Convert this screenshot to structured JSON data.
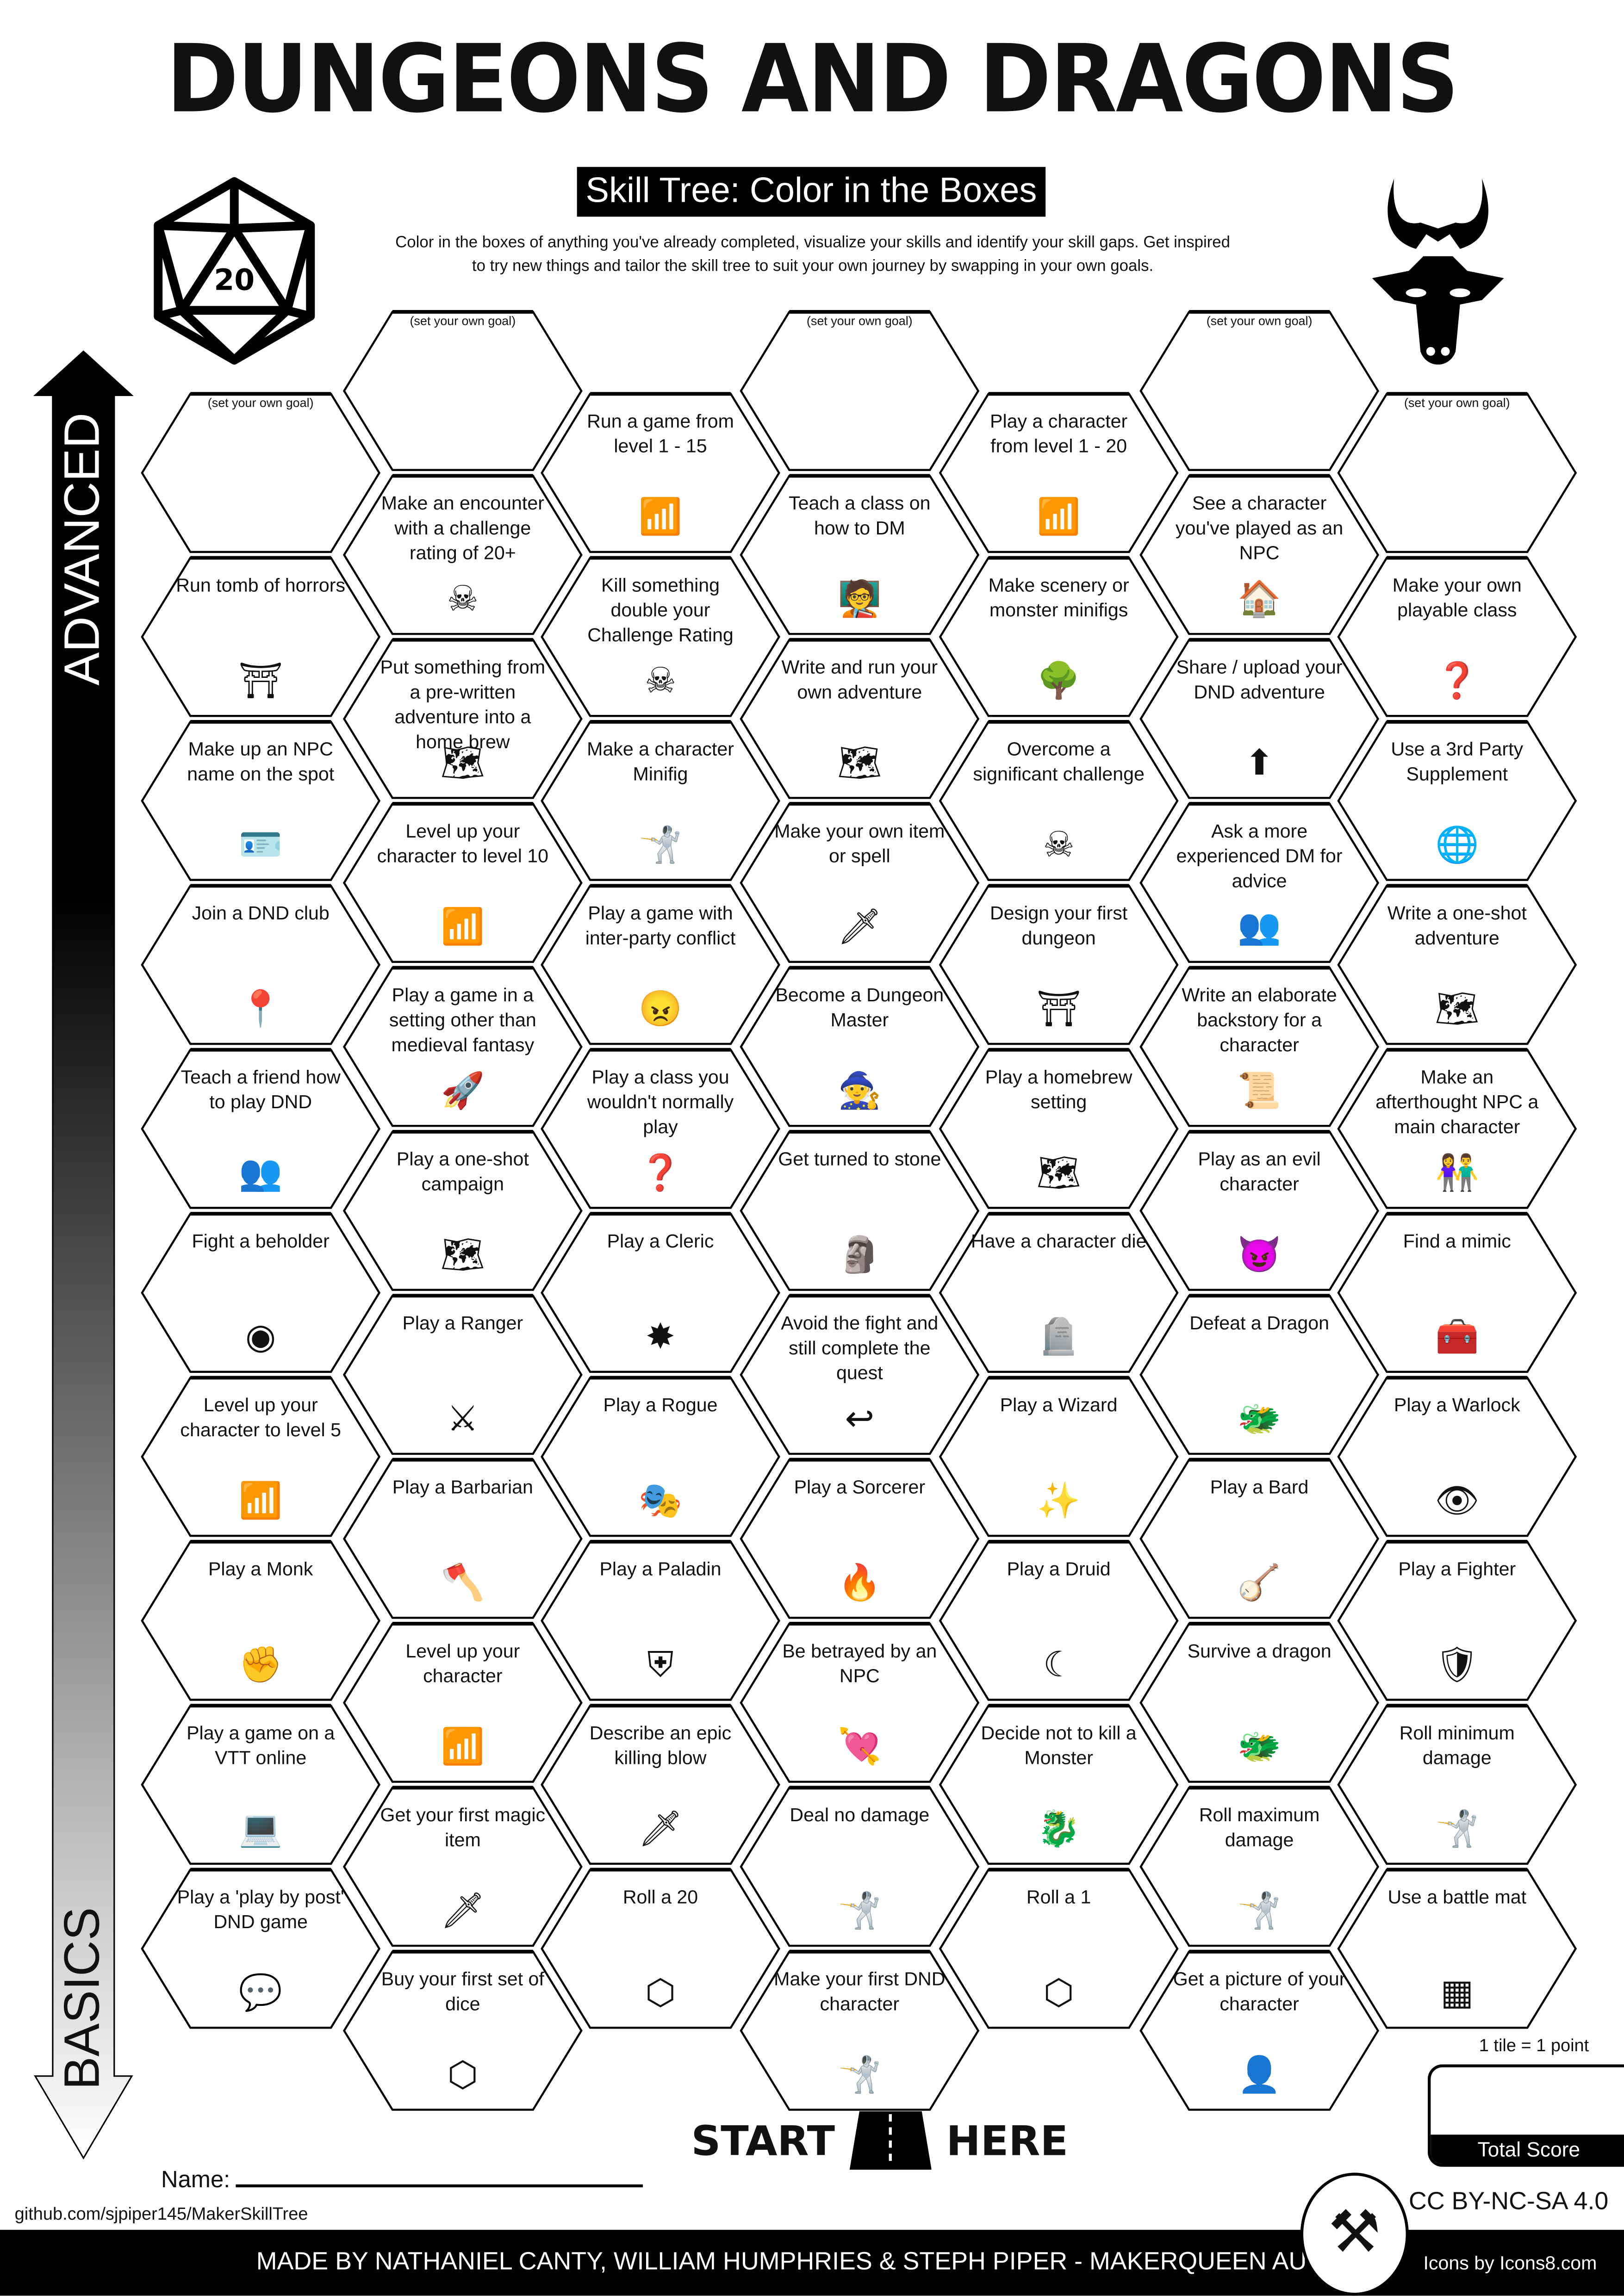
{
  "title": "DUNGEONS AND DRAGONS",
  "subtitle": "Skill Tree: Color in the Boxes",
  "intro_line1": "Color in the boxes of anything you've already completed, visualize your skills and identify your skill gaps.  Get inspired",
  "intro_line2": "to try new things and tailor the skill tree to suit your own journey by swapping in your own goals.",
  "d20_number": "20",
  "axis": {
    "top": "ADVANCED",
    "bottom": "BASICS"
  },
  "columns": [
    [
      {
        "label": "(set your own goal)",
        "small": true,
        "icon": ""
      },
      {
        "label": "Run tomb of horrors",
        "icon": "dungeon-gate-icon"
      },
      {
        "label": "Make up an NPC name on the spot",
        "icon": "id-badge-icon"
      },
      {
        "label": "Join a DND club",
        "icon": "location-pin-icon"
      },
      {
        "label": "Teach a friend how to play DND",
        "icon": "people-laptop-icon"
      },
      {
        "label": "Fight a beholder",
        "icon": "eye-icon"
      },
      {
        "label": "Level up your character to level 5",
        "icon": "level-bars-icon"
      },
      {
        "label": "Play a Monk",
        "icon": "fist-icon"
      },
      {
        "label": "Play a game on a VTT online",
        "icon": "laptop-map-icon"
      },
      {
        "label": "Play a 'play by post' DND game",
        "icon": "chat-bubble-icon"
      }
    ],
    [
      {
        "label": "(set your own goal)",
        "small": true,
        "icon": ""
      },
      {
        "label": "Make an encounter with a challenge rating of 20+",
        "icon": "horned-skull-icon"
      },
      {
        "label": "Put something from a pre-written adventure into a home brew",
        "icon": "treasure-map-icon"
      },
      {
        "label": "Level up your character to level 10",
        "icon": "level-bars-icon"
      },
      {
        "label": "Play a game in a setting other than medieval fantasy",
        "icon": "spaceship-icon"
      },
      {
        "label": "Play a one-shot campaign",
        "icon": "treasure-map-icon"
      },
      {
        "label": "Play a Ranger",
        "icon": "ranger-daggers-icon"
      },
      {
        "label": "Play a Barbarian",
        "icon": "battle-axe-icon"
      },
      {
        "label": "Level up your character",
        "icon": "level-bars-icon"
      },
      {
        "label": "Get your first magic item",
        "icon": "magic-sword-icon"
      },
      {
        "label": "Buy your first set of dice",
        "icon": "d20-icon"
      }
    ],
    [
      {
        "label": "Run a game from level 1 - 15",
        "icon": "level-bars-icon"
      },
      {
        "label": "Kill something double your Challenge Rating",
        "icon": "skull-circle-icon"
      },
      {
        "label": "Make a character Minifig",
        "icon": "adventurer-icon"
      },
      {
        "label": "Play a game with inter-party conflict",
        "icon": "angry-face-icon"
      },
      {
        "label": "Play a class you wouldn't normally play",
        "icon": "head-question-icon"
      },
      {
        "label": "Play a Cleric",
        "icon": "mace-icon"
      },
      {
        "label": "Play a Rogue",
        "icon": "rogue-mask-icon"
      },
      {
        "label": "Play a Paladin",
        "icon": "paladin-helmet-icon"
      },
      {
        "label": "Describe an epic killing blow",
        "icon": "hand-sword-icon"
      },
      {
        "label": "Roll a 20",
        "icon": "d20-icon"
      }
    ],
    [
      {
        "label": "(set your own goal)",
        "small": true,
        "icon": ""
      },
      {
        "label": "Teach a class on how to DM",
        "icon": "teacher-icon"
      },
      {
        "label": "Write and run your own adventure",
        "icon": "treasure-map-icon"
      },
      {
        "label": "Make your own item or spell",
        "icon": "magic-sword-icon"
      },
      {
        "label": "Become a Dungeon Master",
        "icon": "wizard-hat-icon"
      },
      {
        "label": "Get turned to stone",
        "icon": "statue-icon"
      },
      {
        "label": "Avoid the fight and still complete the quest",
        "icon": "route-icon"
      },
      {
        "label": "Play a Sorcerer",
        "icon": "flame-icon"
      },
      {
        "label": "Be betrayed by an NPC",
        "icon": "pierced-heart-icon"
      },
      {
        "label": "Deal no damage",
        "icon": "adventurer-zero-icon"
      },
      {
        "label": "Make your first DND character",
        "icon": "adventurer-icon"
      }
    ],
    [
      {
        "label": "Play a character from level 1 - 20",
        "icon": "level-bars-icon"
      },
      {
        "label": "Make scenery or monster minifigs",
        "icon": "tree-icon"
      },
      {
        "label": "Overcome a significant challenge",
        "icon": "skull-circle-icon"
      },
      {
        "label": "Design your first dungeon",
        "icon": "dungeon-gate-icon"
      },
      {
        "label": "Play a homebrew setting",
        "icon": "treasure-map-icon"
      },
      {
        "label": "Have a character die",
        "icon": "gravestone-icon"
      },
      {
        "label": "Play a Wizard",
        "icon": "wizard-hand-icon"
      },
      {
        "label": "Play a Druid",
        "icon": "sickle-icon"
      },
      {
        "label": "Decide not to kill a Monster",
        "icon": "dragon-heart-icon"
      },
      {
        "label": "Roll a 1",
        "icon": "d20-icon"
      }
    ],
    [
      {
        "label": "(set your own goal)",
        "small": true,
        "icon": ""
      },
      {
        "label": "See a character you've played as an NPC",
        "icon": "house-person-icon"
      },
      {
        "label": "Share / upload your DND adventure",
        "icon": "upload-icon"
      },
      {
        "label": "Ask a more experienced DM for advice",
        "icon": "people-laptop-icon"
      },
      {
        "label": "Write an elaborate backstory for a character",
        "icon": "scroll-quill-icon"
      },
      {
        "label": "Play as an evil character",
        "icon": "devil-face-icon"
      },
      {
        "label": "Defeat a Dragon",
        "icon": "dragon-head-icon"
      },
      {
        "label": "Play a Bard",
        "icon": "lute-icon"
      },
      {
        "label": "Survive a dragon",
        "icon": "dragon-head-icon"
      },
      {
        "label": "Roll maximum damage",
        "icon": "adventurer-crit-icon"
      },
      {
        "label": "Get a picture of your character",
        "icon": "portrait-icon"
      }
    ],
    [
      {
        "label": "(set your own goal)",
        "small": true,
        "icon": ""
      },
      {
        "label": "Make your own playable class",
        "icon": "head-question-icon"
      },
      {
        "label": "Use a 3rd Party Supplement",
        "icon": "globe-icon"
      },
      {
        "label": "Write a one-shot adventure",
        "icon": "treasure-map-icon"
      },
      {
        "label": "Make an afterthought NPC a main character",
        "icon": "two-people-icon"
      },
      {
        "label": "Find a mimic",
        "icon": "treasure-chest-icon"
      },
      {
        "label": "Play a Warlock",
        "icon": "warlock-eye-icon"
      },
      {
        "label": "Play a Fighter",
        "icon": "sword-shield-icon"
      },
      {
        "label": "Roll minimum damage",
        "icon": "adventurer-one-icon"
      },
      {
        "label": "Use a battle mat",
        "icon": "grid-mat-icon"
      }
    ]
  ],
  "start": {
    "left": "START",
    "right": "HERE"
  },
  "score": {
    "note": "1 tile = 1 point",
    "label": "Total Score"
  },
  "name_label": "Name:",
  "github": "github.com/sjpiper145/MakerSkillTree",
  "license": "CC BY-NC-SA 4.0",
  "footer": {
    "made_by": "MADE BY NATHANIEL CANTY, WILLIAM HUMPHRIES & STEPH PIPER  -  MAKERQUEEN AU",
    "icons": "Icons by Icons8.com"
  }
}
